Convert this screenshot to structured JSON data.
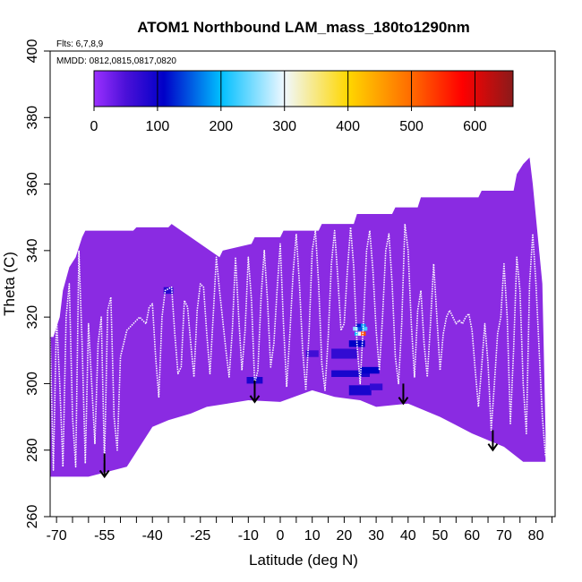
{
  "chart_data": {
    "type": "heatmap",
    "title": "ATOM1 Northbound LAM_mass_180to1290nm",
    "flights_note": "Flts: 6,7,8,9",
    "dates_note": "MMDD: 0812,0815,0817,0820",
    "xlabel": "Latitude (deg N)",
    "ylabel": "Theta (C)",
    "xlim": [
      -72,
      86
    ],
    "ylim": [
      260,
      400
    ],
    "x_ticks": [
      -70,
      -55,
      -40,
      -25,
      -10,
      0,
      10,
      20,
      30,
      40,
      50,
      60,
      70,
      80
    ],
    "y_ticks": [
      260,
      280,
      300,
      320,
      340,
      360,
      380,
      400
    ],
    "grid": false,
    "colorbar": {
      "range": [
        0,
        660
      ],
      "ticks": [
        0,
        100,
        200,
        300,
        400,
        500,
        600
      ],
      "stops": [
        {
          "value": 0,
          "color": "#9b30ff"
        },
        {
          "value": 50,
          "color": "#4b10d8"
        },
        {
          "value": 110,
          "color": "#0000c8"
        },
        {
          "value": 200,
          "color": "#00bfff"
        },
        {
          "value": 300,
          "color": "#f0f8ff"
        },
        {
          "value": 400,
          "color": "#ffd700"
        },
        {
          "value": 500,
          "color": "#ff6a00"
        },
        {
          "value": 580,
          "color": "#ff0000"
        },
        {
          "value": 660,
          "color": "#8b1a1a"
        }
      ]
    },
    "background_color": "#8a2be2",
    "field_top": [
      [
        -72,
        314
      ],
      [
        -71,
        314
      ],
      [
        -69,
        320
      ],
      [
        -68,
        328
      ],
      [
        -66,
        335
      ],
      [
        -64,
        338
      ],
      [
        -62,
        344
      ],
      [
        -61,
        346
      ],
      [
        -46,
        346
      ],
      [
        -45,
        347
      ],
      [
        -35,
        347
      ],
      [
        -34,
        348
      ],
      [
        -19,
        338
      ],
      [
        -18,
        340
      ],
      [
        -9,
        342
      ],
      [
        -8,
        344
      ],
      [
        0,
        344
      ],
      [
        1,
        346
      ],
      [
        12,
        346
      ],
      [
        13,
        348
      ],
      [
        23,
        348
      ],
      [
        24,
        351
      ],
      [
        35,
        351
      ],
      [
        36,
        353
      ],
      [
        43,
        353
      ],
      [
        44,
        356
      ],
      [
        62,
        356
      ],
      [
        63,
        358
      ],
      [
        73,
        358
      ],
      [
        74,
        363
      ],
      [
        76,
        366
      ],
      [
        78,
        368
      ],
      [
        79,
        360
      ],
      [
        82,
        330
      ],
      [
        83,
        285
      ],
      [
        83,
        277
      ]
    ],
    "field_bottom": [
      [
        -72,
        272
      ],
      [
        -60,
        272
      ],
      [
        -52,
        274
      ],
      [
        -48,
        275
      ],
      [
        -40,
        287
      ],
      [
        -35,
        289
      ],
      [
        -28,
        291
      ],
      [
        -23,
        293
      ],
      [
        -10,
        295
      ],
      [
        0,
        294.5
      ],
      [
        10,
        298
      ],
      [
        17,
        296
      ],
      [
        25,
        295
      ],
      [
        30,
        293
      ],
      [
        40,
        294
      ],
      [
        50,
        290
      ],
      [
        60,
        285
      ],
      [
        70,
        281
      ],
      [
        76,
        276.5
      ],
      [
        83,
        276.5
      ]
    ],
    "high_cells": [
      {
        "lat": -35,
        "theta": 328,
        "w": 3,
        "h": 2,
        "value": 80
      },
      {
        "lat": -8,
        "theta": 301,
        "w": 5,
        "h": 2,
        "value": 90
      },
      {
        "lat": 10,
        "theta": 309,
        "w": 4,
        "h": 2,
        "value": 60
      },
      {
        "lat": 20,
        "theta": 309,
        "w": 8,
        "h": 3,
        "value": 70
      },
      {
        "lat": 22,
        "theta": 303,
        "w": 12,
        "h": 2,
        "value": 90
      },
      {
        "lat": 28,
        "theta": 304,
        "w": 6,
        "h": 2,
        "value": 110
      },
      {
        "lat": 24,
        "theta": 312,
        "w": 5,
        "h": 2,
        "value": 110
      },
      {
        "lat": 25,
        "theta": 298,
        "w": 7,
        "h": 3,
        "value": 90
      },
      {
        "lat": 30,
        "theta": 299,
        "w": 4,
        "h": 2,
        "value": 70
      },
      {
        "lat": 24,
        "theta": 315,
        "w": 1.5,
        "h": 1.2,
        "value": 200
      },
      {
        "lat": 25,
        "theta": 315,
        "w": 1.5,
        "h": 1.2,
        "value": 300
      },
      {
        "lat": 26,
        "theta": 315,
        "w": 1.5,
        "h": 1.2,
        "value": 520
      },
      {
        "lat": 23.5,
        "theta": 316.5,
        "w": 1.5,
        "h": 1.2,
        "value": 260
      },
      {
        "lat": 25,
        "theta": 316.5,
        "w": 1.5,
        "h": 1.2,
        "value": 150
      },
      {
        "lat": 26.5,
        "theta": 316.5,
        "w": 1.5,
        "h": 1.2,
        "value": 230
      },
      {
        "lat": 24.5,
        "theta": 317.5,
        "w": 1.5,
        "h": 1,
        "value": 120
      },
      {
        "lat": 26,
        "theta": 317.5,
        "w": 1.5,
        "h": 1,
        "value": 180
      }
    ],
    "flight_track_profiles": [
      [
        -72,
        315
      ],
      [
        -71,
        274
      ],
      [
        -70,
        320
      ],
      [
        -69,
        300
      ],
      [
        -68,
        275
      ],
      [
        -67,
        320
      ],
      [
        -66,
        330
      ],
      [
        -65,
        290
      ],
      [
        -64,
        275
      ],
      [
        -63,
        340
      ],
      [
        -62,
        312
      ],
      [
        -61,
        276
      ],
      [
        -60,
        318
      ],
      [
        -59,
        300
      ],
      [
        -58,
        282
      ],
      [
        -57,
        312
      ],
      [
        -56,
        320
      ],
      [
        -55,
        276
      ],
      [
        -54,
        322
      ],
      [
        -53,
        326
      ],
      [
        -52,
        290
      ],
      [
        -51,
        280
      ],
      [
        -50,
        308
      ],
      [
        -48,
        316
      ],
      [
        -46,
        318
      ],
      [
        -44,
        320
      ],
      [
        -42,
        318
      ],
      [
        -41,
        323
      ],
      [
        -40,
        324
      ],
      [
        -39,
        308
      ],
      [
        -38,
        296
      ],
      [
        -37,
        320
      ],
      [
        -36,
        328
      ],
      [
        -34,
        329
      ],
      [
        -33,
        315
      ],
      [
        -32,
        303
      ],
      [
        -31,
        305
      ],
      [
        -30,
        325
      ],
      [
        -29,
        323
      ],
      [
        -28,
        312
      ],
      [
        -27,
        302
      ],
      [
        -26,
        322
      ],
      [
        -25,
        330
      ],
      [
        -24,
        329
      ],
      [
        -23,
        315
      ],
      [
        -22,
        303
      ],
      [
        -21,
        320
      ],
      [
        -20,
        338
      ],
      [
        -19,
        328
      ],
      [
        -17,
        310
      ],
      [
        -16,
        302
      ],
      [
        -15,
        316
      ],
      [
        -14,
        338
      ],
      [
        -13,
        320
      ],
      [
        -12,
        304
      ],
      [
        -11,
        316
      ],
      [
        -10,
        338
      ],
      [
        -9,
        325
      ],
      [
        -8,
        300
      ],
      [
        -7,
        304
      ],
      [
        -6,
        326
      ],
      [
        -5,
        340
      ],
      [
        -4,
        325
      ],
      [
        -3,
        305
      ],
      [
        -2,
        312
      ],
      [
        -1,
        328
      ],
      [
        0,
        342
      ],
      [
        1,
        318
      ],
      [
        2,
        299
      ],
      [
        3,
        315
      ],
      [
        4,
        333
      ],
      [
        5,
        345
      ],
      [
        6,
        330
      ],
      [
        7,
        310
      ],
      [
        8,
        298
      ],
      [
        9,
        315
      ],
      [
        10,
        340
      ],
      [
        11,
        346
      ],
      [
        12,
        330
      ],
      [
        13,
        306
      ],
      [
        14,
        298
      ],
      [
        15,
        314
      ],
      [
        16,
        336
      ],
      [
        17,
        346
      ],
      [
        18,
        332
      ],
      [
        19,
        316
      ],
      [
        20,
        318
      ],
      [
        21,
        334
      ],
      [
        22,
        347
      ],
      [
        23,
        335
      ],
      [
        24,
        312
      ],
      [
        25,
        300
      ],
      [
        26,
        318
      ],
      [
        27,
        340
      ],
      [
        28,
        346
      ],
      [
        29,
        334
      ],
      [
        30,
        316
      ],
      [
        31,
        304
      ],
      [
        32,
        320
      ],
      [
        33,
        340
      ],
      [
        34,
        345
      ],
      [
        35,
        330
      ],
      [
        36,
        308
      ],
      [
        37,
        300
      ],
      [
        38,
        318
      ],
      [
        39,
        348
      ],
      [
        40,
        340
      ],
      [
        41,
        318
      ],
      [
        42,
        302
      ],
      [
        43,
        322
      ],
      [
        44,
        328
      ],
      [
        45,
        312
      ],
      [
        46,
        302
      ],
      [
        47,
        318
      ],
      [
        48,
        336
      ],
      [
        49,
        320
      ],
      [
        50,
        304
      ],
      [
        51,
        315
      ],
      [
        52,
        320
      ],
      [
        53,
        322
      ],
      [
        54,
        320
      ],
      [
        55,
        318
      ],
      [
        56,
        319
      ],
      [
        57,
        318
      ],
      [
        58,
        320
      ],
      [
        59,
        321
      ],
      [
        60,
        316
      ],
      [
        61,
        304
      ],
      [
        62,
        293
      ],
      [
        63,
        305
      ],
      [
        64,
        318
      ],
      [
        65,
        306
      ],
      [
        66,
        286
      ],
      [
        67,
        300
      ],
      [
        68,
        315
      ],
      [
        69,
        320
      ],
      [
        70,
        336
      ],
      [
        71,
        320
      ],
      [
        72,
        288
      ],
      [
        73,
        310
      ],
      [
        74,
        338
      ],
      [
        75,
        328
      ],
      [
        76,
        300
      ],
      [
        77,
        285
      ],
      [
        78,
        330
      ],
      [
        79,
        345
      ],
      [
        80,
        330
      ],
      [
        81,
        310
      ],
      [
        82,
        290
      ],
      [
        83,
        278
      ]
    ],
    "arrows": [
      {
        "lat": -55,
        "theta_start": 279,
        "theta_end": 272
      },
      {
        "lat": -8,
        "theta_start": 301,
        "theta_end": 294.5
      },
      {
        "lat": 38.5,
        "theta_start": 300,
        "theta_end": 294
      },
      {
        "lat": 66.5,
        "theta_start": 286,
        "theta_end": 280
      }
    ]
  }
}
